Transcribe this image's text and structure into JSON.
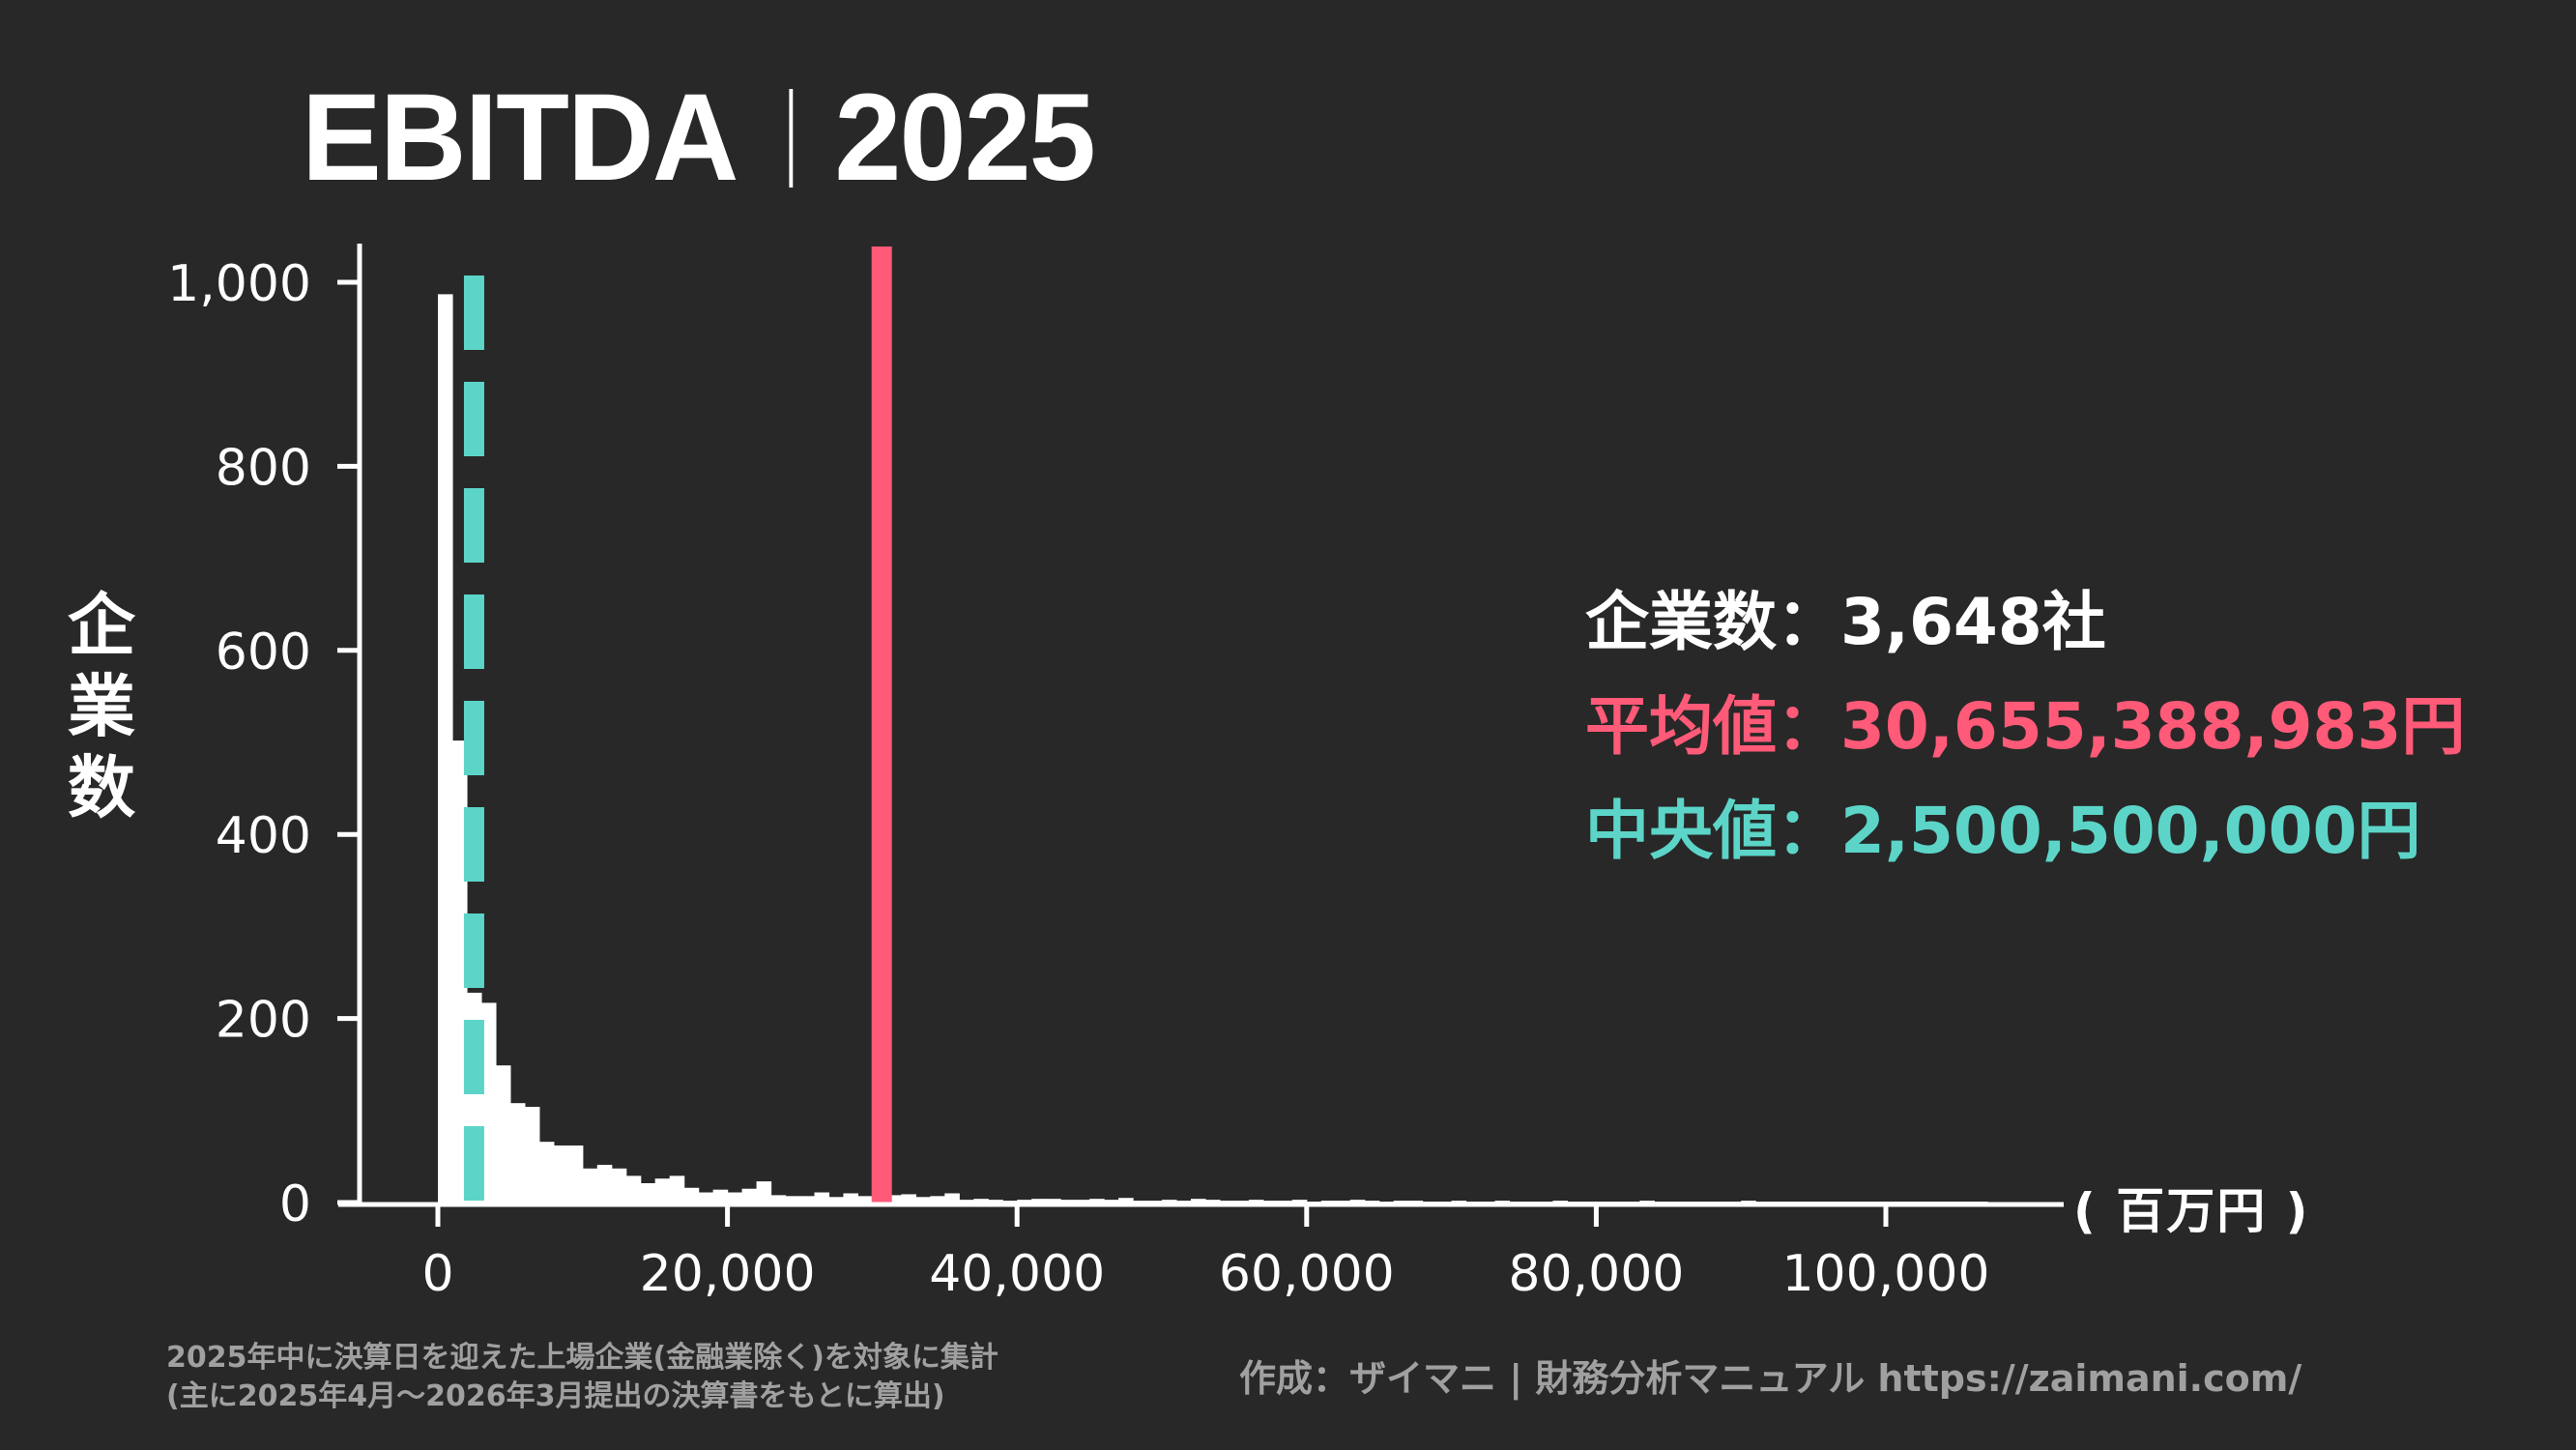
{
  "title": {
    "main": "EBITDA",
    "year": "2025"
  },
  "colors": {
    "background": "#282828",
    "bars": "#ffffff",
    "axis": "#ffffff",
    "mean": "#ff5a78",
    "median": "#5cd5c8",
    "footnote": "#a0a0a0"
  },
  "yaxis_label": [
    "企",
    "業",
    "数"
  ],
  "unit_label": "( 百万円 )",
  "stats": {
    "count_label": "企業数：",
    "count_value": "3,648社",
    "mean_label": "平均値：",
    "mean_value": "30,655,388,983円",
    "median_label": "中央値：",
    "median_value": "2,500,500,000円"
  },
  "footer": {
    "note_line1": "2025年中に決算日を迎えた上場企業(金融業除く)を対象に集計",
    "note_line2": "(主に2025年4月～2026年3月提出の決算書をもとに算出)",
    "credit": "作成：ザイマニ | 財務分析マニュアル https://zaimani.com/"
  },
  "chart_data": {
    "type": "bar",
    "title": "EBITDA | 2025",
    "xlabel": "百万円",
    "ylabel": "企業数",
    "bin_width": 1000,
    "bin_start": 0,
    "xlim": [
      -7000,
      112000
    ],
    "ylim": [
      0,
      1000
    ],
    "xticks": [
      0,
      20000,
      40000,
      60000,
      80000,
      100000
    ],
    "xtick_labels": [
      "0",
      "20,000",
      "40,000",
      "60,000",
      "80,000",
      "100,000"
    ],
    "yticks": [
      0,
      200,
      400,
      600,
      800,
      1000
    ],
    "ytick_labels": [
      "0",
      "200",
      "400",
      "600",
      "800",
      "1,000"
    ],
    "values": [
      987,
      502,
      228,
      217,
      149,
      108,
      104,
      66,
      62,
      62,
      37,
      41,
      37,
      29,
      21,
      26,
      29,
      16,
      11,
      14,
      11,
      15,
      23,
      8,
      7,
      7,
      11,
      6,
      10,
      7,
      9,
      8,
      9,
      6,
      7,
      10,
      3,
      4,
      3,
      2,
      3,
      4,
      4,
      3,
      3,
      4,
      3,
      5,
      2,
      2,
      3,
      2,
      4,
      3,
      2,
      2,
      3,
      2,
      2,
      3,
      1,
      2,
      2,
      3,
      2,
      1,
      2,
      2,
      1,
      1,
      2,
      1,
      1,
      2,
      1,
      1,
      1,
      2,
      1,
      1,
      1,
      1,
      1,
      2,
      1,
      1,
      1,
      1,
      1,
      1,
      2,
      1,
      1,
      1,
      1,
      1,
      1,
      1,
      1,
      1,
      1,
      1,
      1,
      1,
      1,
      1,
      1
    ],
    "mean_line": {
      "x": 30655,
      "label": "平均値",
      "color": "#ff5a78",
      "style": "solid"
    },
    "median_line": {
      "x": 2500,
      "label": "中央値",
      "color": "#5cd5c8",
      "style": "dashed"
    },
    "grid": false,
    "legend": "none (stats text box at right)"
  }
}
